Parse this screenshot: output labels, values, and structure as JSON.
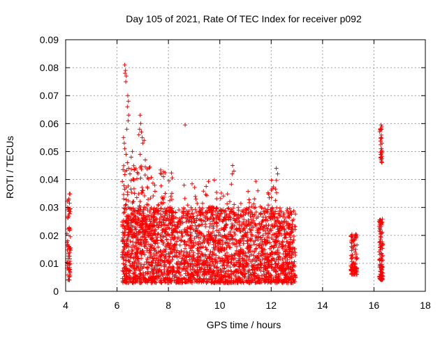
{
  "chart_data": {
    "type": "scatter",
    "title": "Day 105 of 2021, Rate Of TEC Index for receiver p092",
    "xlabel": "GPS time / hours",
    "ylabel": "ROTI / TECUs",
    "xlim": [
      4,
      18
    ],
    "ylim": [
      0,
      0.09
    ],
    "xticks": [
      4,
      6,
      8,
      10,
      12,
      14,
      16,
      18
    ],
    "yticks": [
      0,
      0.01,
      0.02,
      0.03,
      0.04,
      0.05,
      0.06,
      0.07,
      0.08,
      0.09
    ],
    "grid": true,
    "legend": "none",
    "marker": "+",
    "color": "#ff0000",
    "clusters": [
      {
        "x": [
          4.05,
          4.2
        ],
        "y": [
          0.004,
          0.035
        ],
        "n": 70
      },
      {
        "x": [
          6.2,
          12.95
        ],
        "y": [
          0.003,
          0.03
        ],
        "n": 2600
      },
      {
        "x": [
          6.2,
          7.5
        ],
        "y": [
          0.02,
          0.045
        ],
        "n": 160
      },
      {
        "x": [
          7.6,
          8.2
        ],
        "y": [
          0.025,
          0.044
        ],
        "n": 40
      },
      {
        "x": [
          8.5,
          12.3
        ],
        "y": [
          0.025,
          0.04
        ],
        "n": 90
      },
      {
        "x": [
          15.1,
          15.35
        ],
        "y": [
          0.006,
          0.021
        ],
        "n": 90
      },
      {
        "x": [
          16.2,
          16.35
        ],
        "y": [
          0.004,
          0.026
        ],
        "n": 110
      },
      {
        "x": [
          16.22,
          16.32
        ],
        "y": [
          0.046,
          0.059
        ],
        "n": 25
      }
    ],
    "points": [
      [
        6.3,
        0.081
      ],
      [
        6.33,
        0.079
      ],
      [
        6.36,
        0.077
      ],
      [
        6.34,
        0.075
      ],
      [
        6.31,
        0.078
      ],
      [
        6.42,
        0.07
      ],
      [
        6.44,
        0.068
      ],
      [
        6.4,
        0.066
      ],
      [
        6.45,
        0.063
      ],
      [
        6.43,
        0.061
      ],
      [
        6.25,
        0.055
      ],
      [
        6.28,
        0.053
      ],
      [
        6.3,
        0.051
      ],
      [
        6.35,
        0.049
      ],
      [
        6.38,
        0.058
      ],
      [
        6.4,
        0.046
      ],
      [
        6.45,
        0.044
      ],
      [
        6.5,
        0.042
      ],
      [
        6.55,
        0.048
      ],
      [
        6.6,
        0.05
      ],
      [
        6.9,
        0.063
      ],
      [
        6.92,
        0.06
      ],
      [
        6.88,
        0.058
      ],
      [
        6.95,
        0.057
      ],
      [
        6.85,
        0.056
      ],
      [
        6.98,
        0.055
      ],
      [
        7.0,
        0.053
      ],
      [
        7.05,
        0.054
      ],
      [
        6.9,
        0.049
      ],
      [
        7.1,
        0.047
      ],
      [
        8.65,
        0.0595
      ],
      [
        10.5,
        0.045
      ],
      [
        10.55,
        0.043
      ],
      [
        10.48,
        0.042
      ],
      [
        12.2,
        0.044
      ],
      [
        12.25,
        0.042
      ],
      [
        16.28,
        0.0595
      ],
      [
        16.3,
        0.058
      ],
      [
        16.27,
        0.055
      ],
      [
        16.31,
        0.053
      ],
      [
        16.29,
        0.051
      ],
      [
        16.26,
        0.049
      ],
      [
        16.28,
        0.047
      ]
    ]
  }
}
